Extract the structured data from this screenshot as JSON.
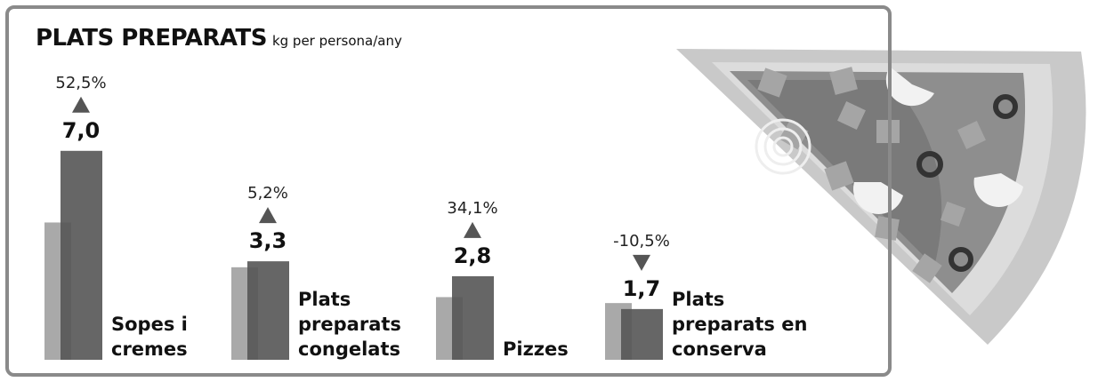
{
  "chart_data": {
    "type": "bar",
    "title": "PLATS PREPARATS",
    "subtitle": "kg per persona/any",
    "categories": [
      "Sopes i cremes",
      "Plats preparats congelats",
      "Pizzes",
      "Plats preparats en conserva"
    ],
    "series": [
      {
        "color": "#a9a9a9",
        "values": [
          4.6,
          3.1,
          2.1,
          1.9
        ]
      },
      {
        "color": "#555555",
        "values": [
          7.0,
          3.3,
          2.8,
          1.7
        ],
        "value_labels": [
          "7,0",
          "3,3",
          "2,8",
          "1,7"
        ]
      }
    ],
    "changes": {
      "color": "#555555",
      "values": [
        52.5,
        5.2,
        34.1,
        -10.5
      ],
      "value_labels": [
        "52,5%",
        "5,2%",
        "34,1%",
        "-10,5%"
      ]
    }
  }
}
